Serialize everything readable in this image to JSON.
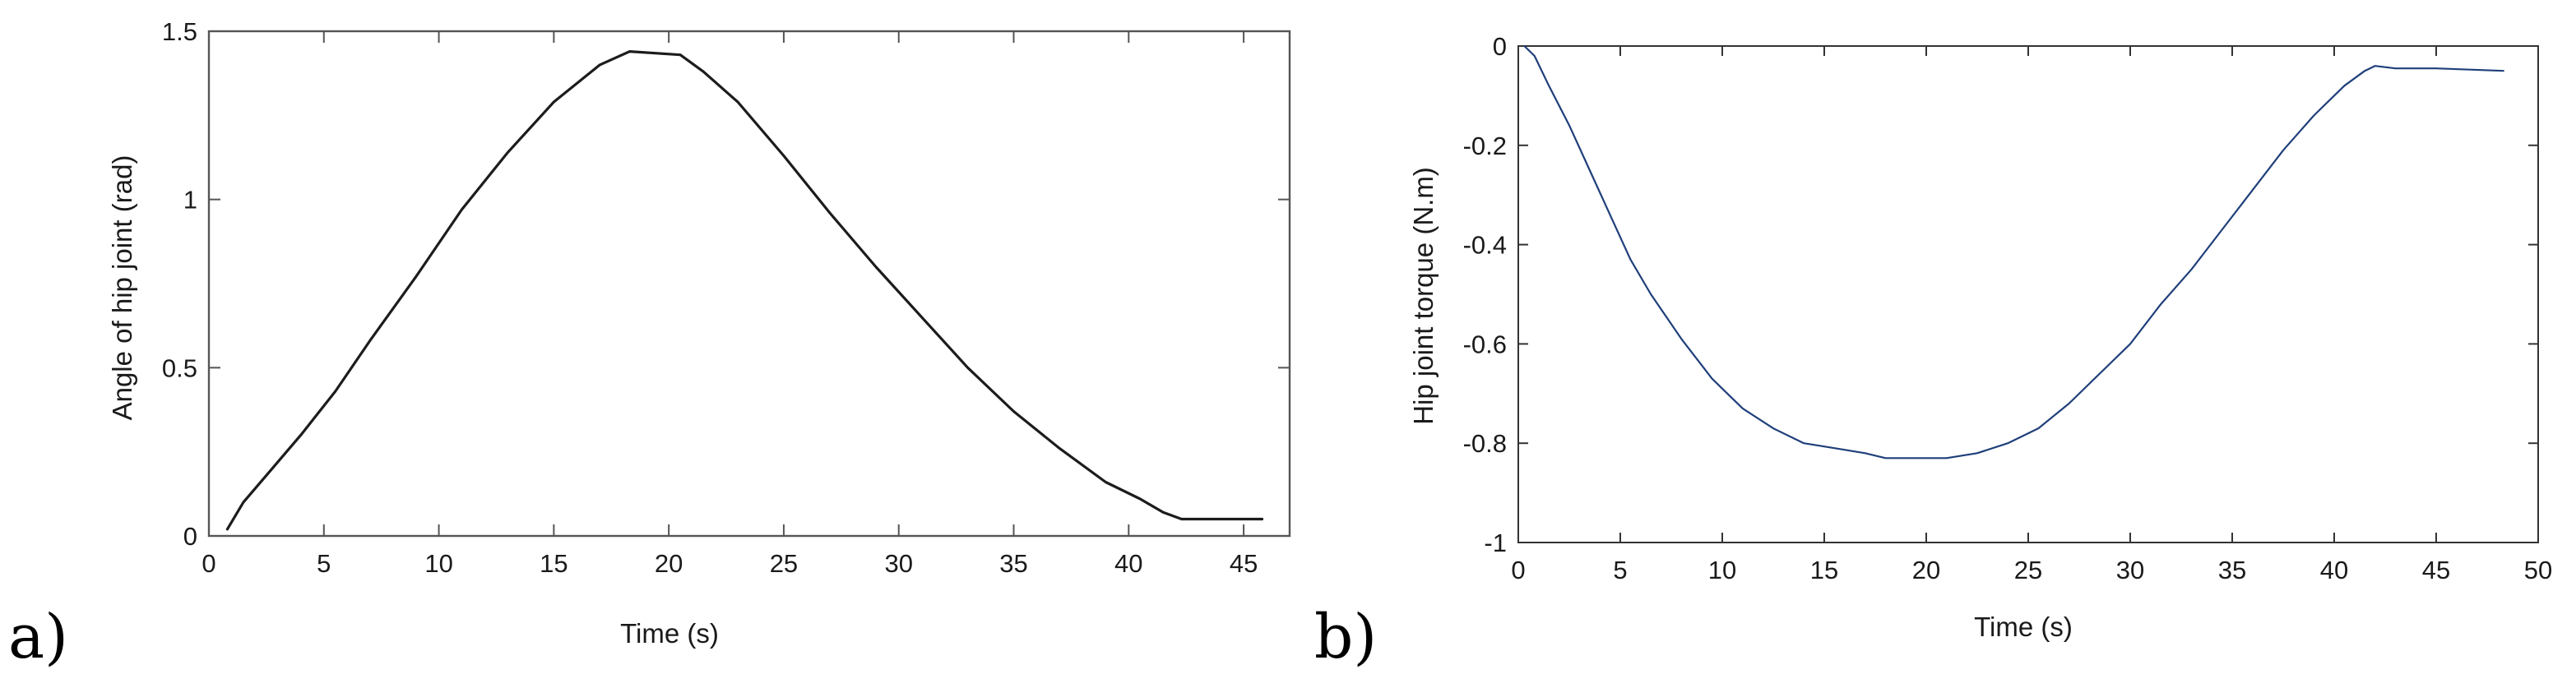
{
  "chart_data": [
    {
      "panel_label": "a)",
      "type": "line",
      "title": "",
      "xlabel": "Time (s)",
      "ylabel": "Angle of hip joint (rad)",
      "xlim": [
        0,
        47
      ],
      "ylim": [
        0,
        1.5
      ],
      "xticks": [
        0,
        5,
        10,
        15,
        20,
        25,
        30,
        35,
        40,
        45
      ],
      "yticks": [
        0,
        0.5,
        1,
        1.5
      ],
      "ytick_labels": [
        "0",
        "0.5",
        "1",
        "1.5"
      ],
      "grid": false,
      "line_color": "#1c1c1c",
      "series": [
        {
          "x": [
            0.8,
            1.5,
            2.5,
            4,
            5.5,
            7,
            9,
            11,
            13,
            15,
            17,
            18.3,
            20.5,
            21.5,
            23,
            25,
            27,
            29,
            31,
            33,
            35,
            37,
            39,
            40.5,
            41.5,
            42.3,
            43,
            44,
            45.8
          ],
          "y": [
            0.02,
            0.1,
            0.18,
            0.3,
            0.43,
            0.58,
            0.77,
            0.97,
            1.14,
            1.29,
            1.4,
            1.44,
            1.43,
            1.38,
            1.29,
            1.13,
            0.96,
            0.8,
            0.65,
            0.5,
            0.37,
            0.26,
            0.16,
            0.11,
            0.07,
            0.05,
            0.05,
            0.05,
            0.05
          ]
        }
      ]
    },
    {
      "panel_label": "b)",
      "type": "line",
      "title": "",
      "xlabel": "Time (s)",
      "ylabel": "Hip joint torque (N.m)",
      "xlim": [
        0,
        50
      ],
      "ylim": [
        -1,
        0
      ],
      "xticks": [
        0,
        5,
        10,
        15,
        20,
        25,
        30,
        35,
        40,
        45,
        50
      ],
      "yticks": [
        -1,
        -0.8,
        -0.6,
        -0.4,
        -0.2,
        0
      ],
      "ytick_labels": [
        "-1",
        "-0.8",
        "-0.6",
        "-0.4",
        "-0.2",
        "0"
      ],
      "grid": false,
      "line_color": "#1f3f7a",
      "series": [
        {
          "x": [
            0.3,
            0.8,
            1.5,
            2.5,
            3.5,
            4.5,
            5.5,
            6.5,
            8,
            9.5,
            11,
            12.5,
            14,
            15.5,
            17,
            18,
            19.5,
            21,
            22.5,
            24,
            25.5,
            27,
            28.5,
            30,
            31.5,
            33,
            34.5,
            36,
            37.5,
            39,
            40.5,
            41.5,
            42,
            43,
            45,
            48.3
          ],
          "y": [
            0,
            -0.02,
            -0.08,
            -0.16,
            -0.25,
            -0.34,
            -0.43,
            -0.5,
            -0.59,
            -0.67,
            -0.73,
            -0.77,
            -0.8,
            -0.81,
            -0.82,
            -0.83,
            -0.83,
            -0.83,
            -0.82,
            -0.8,
            -0.77,
            -0.72,
            -0.66,
            -0.6,
            -0.52,
            -0.45,
            -0.37,
            -0.29,
            -0.21,
            -0.14,
            -0.08,
            -0.05,
            -0.04,
            -0.045,
            -0.045,
            -0.05
          ]
        }
      ]
    }
  ]
}
